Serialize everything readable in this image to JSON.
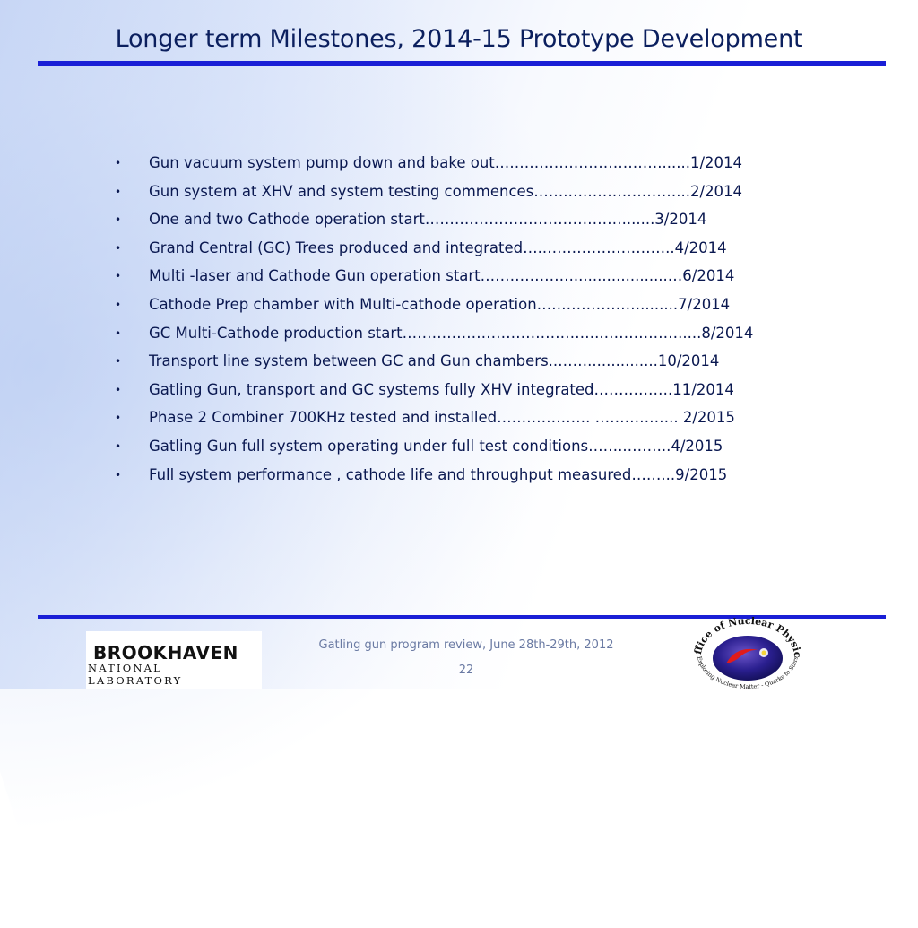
{
  "slide": {
    "title": "Longer term Milestones, 2014-15 Prototype Development",
    "bullet_glyph": "•",
    "items": [
      "Gun vacuum system pump down and bake out…………………………….......1/2014",
      "Gun system at XHV and system testing commences…….….………………...2/2014",
      "One  and two Cathode operation start……….………………………….......3/2014",
      "Grand Central (GC) Trees produced and integrated…..……………………..4/2014",
      "Multi -laser and Cathode Gun operation start……………….....................…6/2014",
      "Cathode Prep  chamber with Multi-cathode operation…………………........7/2014",
      "GC Multi-Cathode production start…………………………………..…………….....8/2014",
      "Transport line system between GC and Gun chambers..……...............10/2014",
      "Gatling Gun, transport and GC systems  fully XHV integrated…………….11/2014",
      "Phase  2 Combiner 700KHz  tested and installed………………. …………….. 2/2015",
      "Gatling Gun full system operating under full test conditions……..……...4/2015",
      "Full system performance , cathode life and throughput measured……...9/2015"
    ]
  },
  "footer": {
    "review": "Gatling gun program review, June 28th-29th, 2012",
    "page_number": "22"
  },
  "logos": {
    "bnl_top": "BROOKHAVEN",
    "bnl_bottom": "NATIONAL LABORATORY",
    "onp_top": "Office of Nuclear Physics",
    "onp_bottom": "Exploring Nuclear Matter - Quarks to Stars"
  },
  "colors": {
    "rule": "#1a1fd6",
    "title": "#0b1f5e",
    "text": "#0a1850"
  }
}
